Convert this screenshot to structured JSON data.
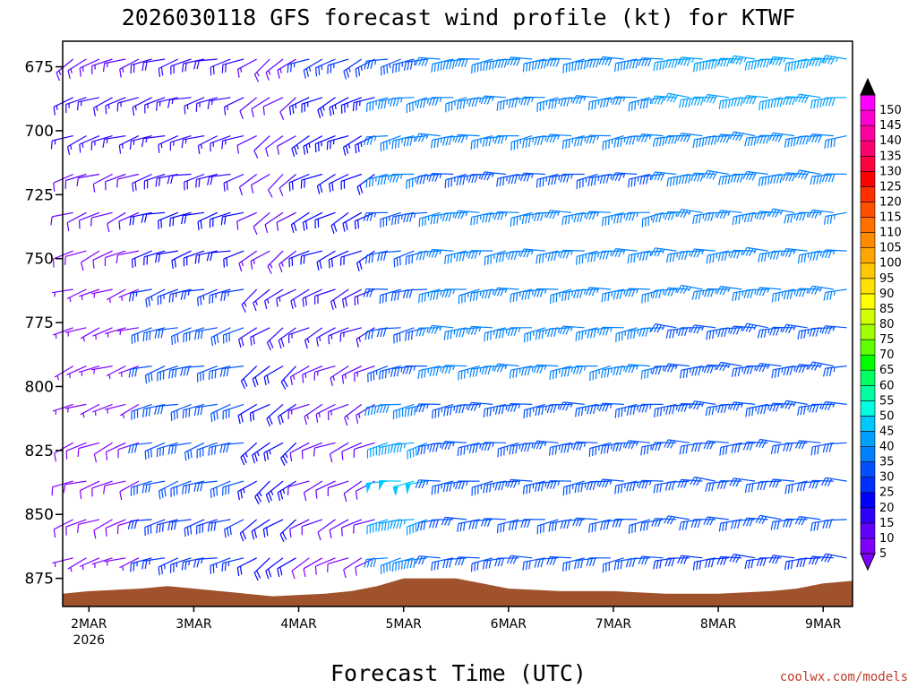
{
  "chart_data": {
    "type": "wind-barb-profile",
    "title": "2026030118 GFS forecast wind profile (kt) for KTWF",
    "xlabel": "Forecast Time (UTC)",
    "credit": "coolwx.com/models",
    "ylabel": "",
    "y_ticks": [
      "675",
      "700",
      "725",
      "750",
      "775",
      "800",
      "825",
      "850",
      "875"
    ],
    "y_range": [
      665,
      886
    ],
    "x_ticks": [
      {
        "label": "2MAR",
        "sub": "2026"
      },
      {
        "label": "3MAR",
        "sub": ""
      },
      {
        "label": "4MAR",
        "sub": ""
      },
      {
        "label": "5MAR",
        "sub": ""
      },
      {
        "label": "6MAR",
        "sub": ""
      },
      {
        "label": "7MAR",
        "sub": ""
      },
      {
        "label": "8MAR",
        "sub": ""
      },
      {
        "label": "9MAR",
        "sub": ""
      }
    ],
    "x_range_days": [
      -0.25,
      7.28
    ],
    "levels_hpa": [
      672,
      687,
      702,
      717,
      732,
      747,
      762,
      777,
      792,
      807,
      822,
      837,
      852,
      867,
      882
    ],
    "time_step_days": 0.125,
    "ground_color": "#a0522d",
    "surface_pressure": [
      {
        "t": -0.25,
        "p": 881
      },
      {
        "t": 0.0,
        "p": 880
      },
      {
        "t": 0.5,
        "p": 879
      },
      {
        "t": 0.75,
        "p": 878
      },
      {
        "t": 1.0,
        "p": 879
      },
      {
        "t": 1.5,
        "p": 881
      },
      {
        "t": 1.75,
        "p": 882
      },
      {
        "t": 2.25,
        "p": 881
      },
      {
        "t": 2.5,
        "p": 880
      },
      {
        "t": 2.75,
        "p": 878
      },
      {
        "t": 3.0,
        "p": 875
      },
      {
        "t": 3.5,
        "p": 875
      },
      {
        "t": 3.75,
        "p": 877
      },
      {
        "t": 4.0,
        "p": 879
      },
      {
        "t": 4.5,
        "p": 880
      },
      {
        "t": 5.0,
        "p": 880
      },
      {
        "t": 5.5,
        "p": 881
      },
      {
        "t": 6.0,
        "p": 881
      },
      {
        "t": 6.5,
        "p": 880
      },
      {
        "t": 6.75,
        "p": 879
      },
      {
        "t": 7.0,
        "p": 877
      },
      {
        "t": 7.28,
        "p": 876
      }
    ],
    "wind_regimes": [
      {
        "t_start": -0.25,
        "t_end": 0.6,
        "speed_kt": [
          14,
          16,
          15,
          12,
          10,
          8,
          7,
          6,
          6,
          7,
          8,
          9,
          8,
          7,
          6
        ],
        "dir_deg": 250
      },
      {
        "t_start": 0.6,
        "t_end": 1.6,
        "speed_kt": [
          18,
          16,
          16,
          18,
          20,
          22,
          26,
          30,
          30,
          30,
          30,
          30,
          28,
          25,
          20
        ],
        "dir_deg": 255
      },
      {
        "t_start": 1.6,
        "t_end": 2.0,
        "speed_kt": [
          14,
          10,
          10,
          12,
          12,
          14,
          16,
          18,
          20,
          22,
          24,
          24,
          22,
          20,
          16
        ],
        "dir_deg": 235
      },
      {
        "t_start": 2.0,
        "t_end": 2.8,
        "speed_kt": [
          25,
          24,
          24,
          22,
          20,
          20,
          18,
          16,
          14,
          14,
          12,
          12,
          10,
          8,
          6
        ],
        "dir_deg": 245
      },
      {
        "t_start": 2.8,
        "t_end": 3.3,
        "speed_kt": [
          34,
          36,
          36,
          36,
          34,
          32,
          30,
          32,
          34,
          38,
          44,
          48,
          44,
          38,
          30
        ],
        "dir_deg": 260
      },
      {
        "t_start": 3.3,
        "t_end": 5.5,
        "speed_kt": [
          38,
          36,
          35,
          34,
          35,
          36,
          36,
          36,
          35,
          34,
          34,
          33,
          32,
          30,
          25
        ],
        "dir_deg": 265
      },
      {
        "t_start": 5.5,
        "t_end": 7.28,
        "speed_kt": [
          44,
          40,
          38,
          38,
          37,
          36,
          35,
          34,
          34,
          33,
          32,
          31,
          30,
          28,
          25
        ],
        "dir_deg": 270
      }
    ],
    "colorbar": {
      "levels": [
        5,
        10,
        15,
        20,
        25,
        30,
        35,
        40,
        45,
        50,
        55,
        60,
        65,
        70,
        75,
        80,
        85,
        90,
        95,
        100,
        105,
        110,
        115,
        120,
        125,
        130,
        135,
        140,
        145,
        150
      ],
      "colors": [
        "#8000ff",
        "#6000ff",
        "#3000ff",
        "#0000ff",
        "#0030ff",
        "#0050ff",
        "#0080ff",
        "#00a0ff",
        "#00c8ff",
        "#00ffe0",
        "#00ffa0",
        "#00ff60",
        "#00ff00",
        "#60ff00",
        "#a0ff00",
        "#d0ff00",
        "#ffff00",
        "#ffe000",
        "#ffc800",
        "#ffa500",
        "#ff8c00",
        "#ff7000",
        "#ff5000",
        "#ff3000",
        "#ff0000",
        "#ff0040",
        "#ff0070",
        "#ff00a0",
        "#ff00d0",
        "#ff00ff"
      ],
      "min_color": "#8000ff",
      "max_color": "#000000"
    }
  }
}
